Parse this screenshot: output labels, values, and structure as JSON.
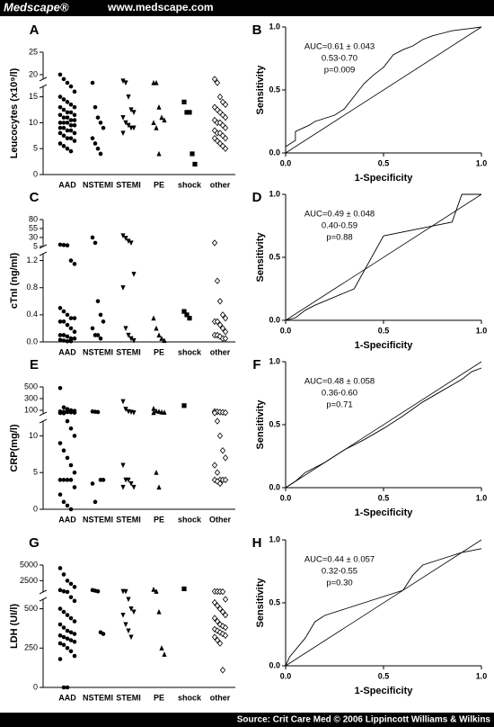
{
  "header": {
    "brand": "Medscape®",
    "url": "www.medscape.com"
  },
  "chart_data": [
    {
      "type": "strip",
      "panel": "A",
      "ylabel": "Leucocytes (x10⁹/l)",
      "categories": [
        "AAD",
        "NSTEMI",
        "STEMI",
        "PE",
        "shock",
        "other"
      ],
      "markers": [
        "circle",
        "circle",
        "triangle-down",
        "triangle-up",
        "square",
        "diamond-open"
      ],
      "values": [
        [
          20,
          19,
          18,
          17,
          16,
          15,
          14.5,
          14,
          13.5,
          13,
          13,
          12.5,
          12,
          12,
          11.5,
          11.5,
          11,
          11,
          10.5,
          10.5,
          10,
          10,
          10,
          9.5,
          9.5,
          9,
          9,
          8.5,
          8.5,
          8,
          8,
          7.5,
          7,
          7,
          6.5,
          6,
          5.5,
          5,
          4.5
        ],
        [
          18,
          13,
          11,
          10,
          9,
          7,
          6,
          5,
          4
        ],
        [
          18.5,
          18,
          15,
          12.5,
          12,
          11,
          10,
          9.5,
          9,
          9,
          8
        ],
        [
          18,
          18,
          13,
          11,
          10.5,
          10,
          9,
          4
        ],
        [
          14,
          12,
          12,
          4,
          2
        ],
        [
          19,
          18,
          15,
          14,
          13.5,
          13,
          12.5,
          12,
          11.5,
          11,
          10.5,
          10,
          10,
          9.5,
          9,
          8.5,
          8,
          8,
          7.5,
          7,
          7,
          6.5,
          6,
          5.5,
          5
        ]
      ],
      "ylim": [
        0,
        25
      ],
      "ybreak": [
        17,
        19
      ],
      "yticks": [
        0,
        5,
        10,
        15,
        20,
        25
      ]
    },
    {
      "type": "line",
      "panel": "B",
      "xlabel": "1-Specificity",
      "ylabel": "Sensitivity",
      "annotations": [
        "AUC=0.61 ± 0.043",
        "0.53-0.70",
        "p=0.009"
      ],
      "x": [
        0,
        0,
        0.05,
        0.05,
        0.12,
        0.15,
        0.25,
        0.3,
        0.35,
        0.4,
        0.45,
        0.5,
        0.55,
        0.6,
        0.65,
        0.7,
        0.75,
        0.8,
        0.85,
        0.9,
        0.95,
        1
      ],
      "y": [
        0,
        0.05,
        0.1,
        0.17,
        0.22,
        0.25,
        0.3,
        0.35,
        0.45,
        0.55,
        0.62,
        0.68,
        0.78,
        0.82,
        0.85,
        0.9,
        0.93,
        0.95,
        0.97,
        0.98,
        0.99,
        1
      ],
      "xlim": [
        0,
        1
      ],
      "ylim": [
        0,
        1
      ],
      "xticks": [
        {
          "value": 0,
          "label": "0.0"
        },
        {
          "value": 0.5,
          "label": "0.5"
        },
        {
          "value": 1,
          "label": "1.0"
        }
      ],
      "yticks": [
        {
          "value": 0,
          "label": "0.0"
        },
        {
          "value": 0.5,
          "label": "0.5"
        },
        {
          "value": 1,
          "label": "1.0"
        }
      ]
    },
    {
      "type": "strip",
      "panel": "C",
      "ylabel": "cTnI (ng/ml)",
      "categories": [
        "AAD",
        "NSTEMI",
        "STEMI",
        "PE",
        "shock",
        "other"
      ],
      "markers": [
        "circle",
        "circle",
        "triangle-down",
        "triangle-up",
        "square",
        "diamond-open"
      ],
      "values": [
        [
          10,
          9,
          8,
          1.2,
          1.15,
          0.5,
          0.45,
          0.4,
          0.35,
          0.35,
          0.3,
          0.3,
          0.25,
          0.2,
          0.15,
          0.1,
          0.1,
          0.08,
          0.05,
          0.05,
          0.03,
          0.02,
          0.01,
          0.01
        ],
        [
          30,
          15,
          0.6,
          0.4,
          0.3,
          0.2,
          0.1,
          0.1,
          0.05
        ],
        [
          35,
          28,
          20,
          15,
          1.0,
          0.8,
          0.2,
          0.1,
          0.05,
          0.02
        ],
        [
          0.35,
          0.2,
          0.1,
          0.05,
          0.02
        ],
        [
          0.45,
          0.4,
          0.35
        ],
        [
          15,
          0.9,
          0.6,
          0.4,
          0.35,
          0.3,
          0.3,
          0.25,
          0.2,
          0.15,
          0.1,
          0.1,
          0.08,
          0.05,
          0.05
        ]
      ],
      "ylim": [
        0,
        80
      ],
      "ybreak": [
        1.3,
        5
      ],
      "yticks": [
        {
          "value": 0,
          "label": "0.0"
        },
        {
          "value": 0.4,
          "label": "0.4"
        },
        {
          "value": 0.8,
          "label": "0.8"
        },
        {
          "value": 1.2,
          "label": "1.2"
        },
        5,
        30,
        55,
        80
      ]
    },
    {
      "type": "line",
      "panel": "D",
      "xlabel": "1-Specificity",
      "ylabel": "Sensitivity",
      "annotations": [
        "AUC=0.49 ± 0.048",
        "0.40-0.59",
        "p=0.88"
      ],
      "x": [
        0,
        0.05,
        0.1,
        0.15,
        0.35,
        0.5,
        0.85,
        0.9,
        1
      ],
      "y": [
        0,
        0.02,
        0.08,
        0.12,
        0.25,
        0.67,
        0.78,
        1,
        1
      ],
      "xlim": [
        0,
        1
      ],
      "ylim": [
        0,
        1
      ],
      "xticks": [
        {
          "value": 0,
          "label": "0.0"
        },
        {
          "value": 0.5,
          "label": "0.5"
        },
        {
          "value": 1,
          "label": "1.0"
        }
      ],
      "yticks": [
        {
          "value": 0,
          "label": "0.0"
        },
        {
          "value": 0.5,
          "label": "0.5"
        },
        {
          "value": 1,
          "label": "1.0"
        }
      ]
    },
    {
      "type": "strip",
      "panel": "E",
      "ylabel": "CRP(mg/l)",
      "categories": [
        "AAD",
        "NSTEMI",
        "STEMI",
        "PE",
        "shock",
        "Other"
      ],
      "markers": [
        "circle",
        "circle",
        "triangle-down",
        "triangle-up",
        "square",
        "diamond-open"
      ],
      "values": [
        [
          480,
          150,
          120,
          100,
          90,
          80,
          75,
          70,
          65,
          60,
          55,
          50,
          12,
          11,
          10,
          9,
          8,
          7,
          6,
          5,
          4,
          4,
          4,
          4,
          3,
          2,
          1,
          0.5,
          0
        ],
        [
          80,
          75,
          70,
          4,
          4,
          3.5,
          1
        ],
        [
          250,
          120,
          80,
          70,
          60,
          6,
          4,
          4,
          3.5,
          3,
          3
        ],
        [
          130,
          90,
          80,
          70,
          65,
          60,
          5,
          3
        ],
        [
          180
        ],
        [
          80,
          75,
          70,
          65,
          60,
          55,
          12,
          10,
          8,
          7,
          6,
          5,
          4,
          4,
          4,
          4,
          3.8,
          3.5
        ]
      ],
      "ylim": [
        0,
        500
      ],
      "ybreak": [
        12,
        40
      ],
      "yticks": [
        0,
        5,
        10,
        100,
        300,
        500
      ]
    },
    {
      "type": "line",
      "panel": "F",
      "xlabel": "1-Specificity",
      "ylabel": "Sensitivity",
      "annotations": [
        "AUC=0.48 ± 0.058",
        "0.36-0.60",
        "p=0.71"
      ],
      "x": [
        0,
        0.05,
        0.1,
        0.2,
        0.3,
        0.4,
        0.5,
        0.6,
        0.7,
        0.8,
        0.9,
        0.95,
        1
      ],
      "y": [
        0,
        0.05,
        0.12,
        0.2,
        0.3,
        0.38,
        0.47,
        0.57,
        0.68,
        0.77,
        0.86,
        0.92,
        0.95
      ],
      "xlim": [
        0,
        1
      ],
      "ylim": [
        0,
        1
      ],
      "xticks": [
        {
          "value": 0,
          "label": "0.0"
        },
        {
          "value": 0.5,
          "label": "0.5"
        },
        {
          "value": 1,
          "label": "1.0"
        }
      ],
      "yticks": [
        {
          "value": 0,
          "label": "0.0"
        },
        {
          "value": 0.5,
          "label": "0.5"
        },
        {
          "value": 1,
          "label": "1.0"
        }
      ]
    },
    {
      "type": "strip",
      "panel": "G",
      "ylabel": "LDH (UI/l)",
      "categories": [
        "AAD",
        "NSTEMI",
        "STEMI",
        "PE",
        "shock",
        "other"
      ],
      "markers": [
        "circle",
        "circle",
        "triangle-down",
        "triangle-up",
        "square",
        "diamond-open"
      ],
      "values": [
        [
          4500,
          3500,
          2500,
          2000,
          1500,
          1000,
          800,
          700,
          600,
          550,
          500,
          480,
          460,
          440,
          420,
          400,
          380,
          360,
          350,
          340,
          330,
          320,
          310,
          300,
          290,
          280,
          270,
          250,
          230,
          200,
          180,
          0,
          0
        ],
        [
          1000,
          900,
          800,
          350,
          340
        ],
        [
          800,
          780,
          560,
          500,
          480,
          460,
          400,
          360,
          320
        ],
        [
          1100,
          800,
          480,
          250,
          210
        ],
        [
          1200
        ],
        [
          800,
          780,
          760,
          740,
          560,
          540,
          520,
          500,
          480,
          460,
          440,
          420,
          400,
          390,
          380,
          370,
          360,
          350,
          340,
          330,
          320,
          300,
          280,
          110
        ]
      ],
      "ylim": [
        0,
        5000
      ],
      "ybreak": [
        560,
        700
      ],
      "yticks": [
        0,
        250,
        500,
        2500,
        5000
      ]
    },
    {
      "type": "line",
      "panel": "H",
      "xlabel": "1-Specificity",
      "ylabel": "Sensitivity",
      "annotations": [
        "AUC=0.44 ± 0.057",
        "0.32-0.55",
        "p=0.30"
      ],
      "x": [
        0,
        0.02,
        0.1,
        0.15,
        0.2,
        0.3,
        0.4,
        0.5,
        0.6,
        0.65,
        0.7,
        0.8,
        0.9,
        1
      ],
      "y": [
        0,
        0.07,
        0.22,
        0.35,
        0.4,
        0.45,
        0.5,
        0.55,
        0.6,
        0.72,
        0.8,
        0.85,
        0.9,
        0.93
      ],
      "xlim": [
        0,
        1
      ],
      "ylim": [
        0,
        1
      ],
      "xticks": [
        {
          "value": 0,
          "label": "0.0"
        },
        {
          "value": 0.5,
          "label": "0.5"
        },
        {
          "value": 1,
          "label": "1.0"
        }
      ],
      "yticks": [
        {
          "value": 0,
          "label": "0.0"
        },
        {
          "value": 0.5,
          "label": "0.5"
        },
        {
          "value": 1,
          "label": "1.0"
        }
      ]
    }
  ],
  "footer": "Source: Crit Care Med © 2006 Lippincott Williams & Wilkins"
}
